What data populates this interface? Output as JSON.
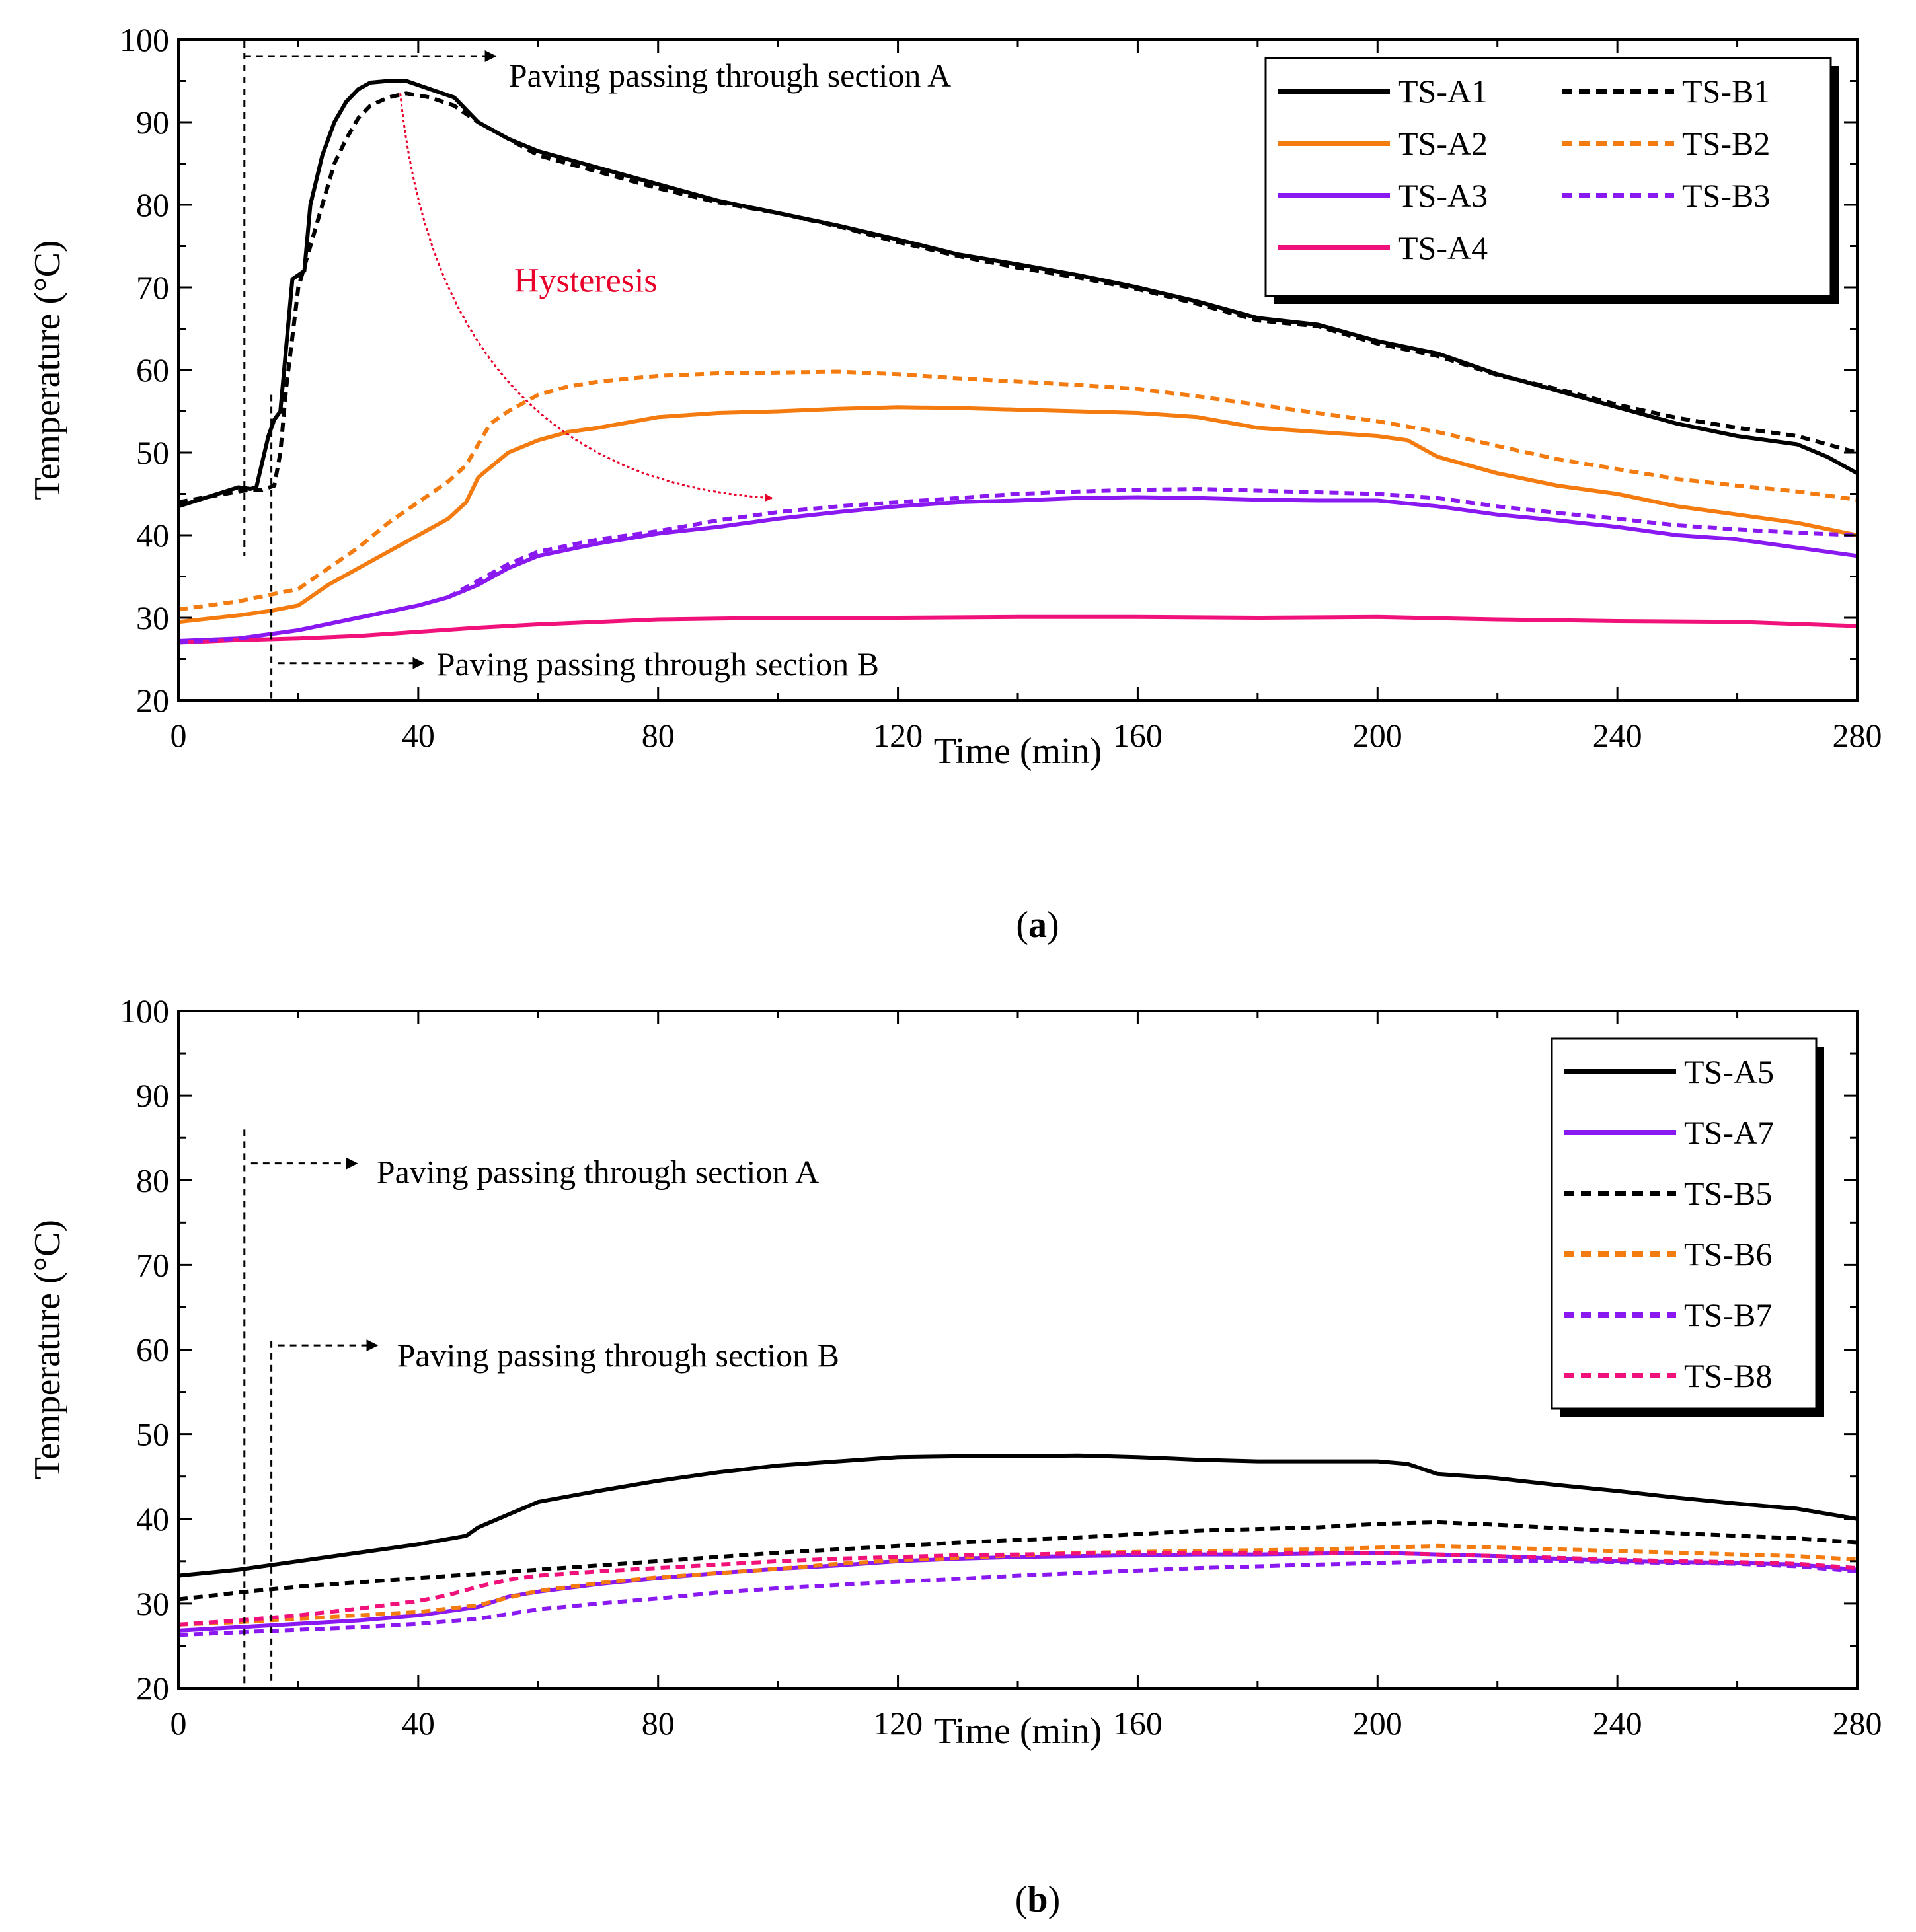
{
  "chart_data": [
    {
      "type": "line",
      "panel_label": "(a)",
      "caption_parts": [
        "(",
        "a",
        ")"
      ],
      "xlabel": "Time (min)",
      "ylabel": "Temperature (°C)",
      "xlim": [
        0,
        280
      ],
      "ylim": [
        20,
        100
      ],
      "xticks": [
        0,
        40,
        80,
        120,
        160,
        200,
        240,
        280
      ],
      "yticks": [
        20,
        30,
        40,
        50,
        60,
        70,
        80,
        90,
        100
      ],
      "legend_position": "top-right",
      "legend_columns": 2,
      "series": [
        {
          "name": "TS-A1",
          "color": "#000000",
          "style": "solid",
          "x": [
            0,
            10,
            12,
            13,
            15,
            16,
            17,
            18,
            19,
            20,
            21,
            22,
            24,
            26,
            28,
            30,
            32,
            35,
            38,
            42,
            46,
            50,
            55,
            60,
            70,
            80,
            90,
            100,
            110,
            120,
            130,
            140,
            150,
            160,
            170,
            180,
            190,
            200,
            210,
            220,
            230,
            240,
            250,
            260,
            270,
            275,
            280
          ],
          "y": [
            43.5,
            45.8,
            45.6,
            45.8,
            52,
            54,
            55,
            63,
            71,
            71.5,
            72,
            80,
            86,
            90,
            92.5,
            94,
            94.8,
            95,
            95,
            94,
            93,
            90,
            88,
            86.5,
            84.5,
            82.5,
            80.5,
            79,
            77.5,
            75.8,
            74,
            72.8,
            71.5,
            70,
            68.3,
            66.3,
            65.5,
            63.5,
            62,
            59.5,
            57.5,
            55.5,
            53.5,
            52,
            51,
            49.5,
            47.5
          ]
        },
        {
          "name": "TS-A2",
          "color": "#f47b0f",
          "style": "solid",
          "x": [
            0,
            10,
            15,
            20,
            25,
            30,
            35,
            40,
            45,
            48,
            50,
            55,
            60,
            65,
            70,
            80,
            90,
            100,
            110,
            120,
            130,
            140,
            150,
            160,
            170,
            180,
            190,
            200,
            205,
            210,
            220,
            230,
            240,
            250,
            260,
            270,
            280
          ],
          "y": [
            29.5,
            30.3,
            30.8,
            31.5,
            34,
            36,
            38,
            40,
            42,
            44,
            47,
            50,
            51.5,
            52.5,
            53,
            54.3,
            54.8,
            55,
            55.3,
            55.5,
            55.4,
            55.2,
            55,
            54.8,
            54.3,
            53,
            52.5,
            52,
            51.5,
            49.5,
            47.5,
            46,
            45,
            43.5,
            42.5,
            41.5,
            40
          ]
        },
        {
          "name": "TS-A3",
          "color": "#8a18f0",
          "style": "solid",
          "x": [
            0,
            10,
            20,
            30,
            40,
            45,
            50,
            55,
            60,
            70,
            80,
            90,
            100,
            110,
            120,
            130,
            140,
            150,
            160,
            170,
            180,
            190,
            200,
            210,
            220,
            230,
            240,
            250,
            260,
            270,
            280
          ],
          "y": [
            27.2,
            27.5,
            28.5,
            30,
            31.5,
            32.5,
            34,
            36,
            37.5,
            39,
            40.2,
            41,
            42,
            42.8,
            43.5,
            44,
            44.2,
            44.5,
            44.6,
            44.5,
            44.3,
            44.2,
            44.2,
            43.5,
            42.5,
            41.8,
            41,
            40,
            39.5,
            38.5,
            37.5
          ]
        },
        {
          "name": "TS-A4",
          "color": "#f0127a",
          "style": "solid",
          "x": [
            0,
            10,
            20,
            30,
            40,
            50,
            60,
            70,
            80,
            90,
            100,
            120,
            140,
            160,
            180,
            200,
            220,
            240,
            260,
            280
          ],
          "y": [
            27,
            27.3,
            27.5,
            27.8,
            28.3,
            28.8,
            29.2,
            29.5,
            29.8,
            29.9,
            30,
            30,
            30.1,
            30.1,
            30,
            30.1,
            29.8,
            29.6,
            29.5,
            29
          ]
        },
        {
          "name": "TS-B1",
          "color": "#000000",
          "style": "dashed",
          "x": [
            0,
            10,
            12,
            14,
            16,
            17,
            18,
            19,
            20,
            22,
            24,
            26,
            28,
            30,
            32,
            35,
            38,
            42,
            46,
            50,
            55,
            60,
            70,
            80,
            90,
            100,
            110,
            120,
            130,
            140,
            150,
            160,
            170,
            180,
            190,
            200,
            210,
            220,
            230,
            240,
            250,
            260,
            270,
            280
          ],
          "y": [
            44,
            45.3,
            45.5,
            45.5,
            46,
            50,
            58,
            64,
            70,
            75,
            80,
            85,
            88,
            90.5,
            92,
            93,
            93.5,
            93,
            92,
            90,
            88,
            86,
            84,
            82,
            80.3,
            79,
            77.4,
            75.5,
            73.8,
            72.4,
            71.2,
            69.8,
            68,
            66,
            65.3,
            63.2,
            61.7,
            59.4,
            57.7,
            55.8,
            54.2,
            53,
            52,
            50
          ]
        },
        {
          "name": "TS-B2",
          "color": "#f47b0f",
          "style": "dashed",
          "x": [
            0,
            10,
            20,
            25,
            30,
            35,
            40,
            45,
            48,
            50,
            52,
            55,
            60,
            65,
            70,
            80,
            90,
            100,
            110,
            120,
            130,
            140,
            150,
            160,
            170,
            180,
            190,
            200,
            210,
            220,
            230,
            240,
            250,
            260,
            270,
            280
          ],
          "y": [
            31,
            32,
            33.5,
            36,
            38.5,
            41.5,
            44,
            46.5,
            48.5,
            51,
            53.5,
            55,
            57,
            58,
            58.6,
            59.3,
            59.6,
            59.7,
            59.8,
            59.5,
            59,
            58.6,
            58.2,
            57.7,
            56.8,
            55.8,
            54.8,
            53.8,
            52.5,
            50.8,
            49.2,
            48,
            46.8,
            46,
            45.3,
            44.3
          ]
        },
        {
          "name": "TS-B3",
          "color": "#8a18f0",
          "style": "dashed",
          "x": [
            0,
            10,
            20,
            30,
            40,
            45,
            50,
            55,
            60,
            70,
            80,
            90,
            100,
            110,
            120,
            130,
            140,
            150,
            160,
            170,
            180,
            190,
            200,
            210,
            220,
            230,
            240,
            250,
            260,
            270,
            280
          ],
          "y": [
            27,
            27.5,
            28.5,
            30,
            31.5,
            32.5,
            34.5,
            36.5,
            38,
            39.5,
            40.5,
            41.8,
            42.8,
            43.5,
            44,
            44.5,
            45,
            45.3,
            45.5,
            45.6,
            45.4,
            45.2,
            45,
            44.5,
            43.5,
            42.7,
            42,
            41.2,
            40.7,
            40.3,
            40
          ]
        }
      ],
      "annotations": {
        "section_a": "Paving passing through section A",
        "section_b": "Paving passing through section B",
        "hysteresis": "Hysteresis"
      },
      "annotation_markers": {
        "section_a_time": 11,
        "section_b_time": 15.5,
        "section_a_arrow_temp": 98,
        "section_b_arrow_temp": 24.5,
        "hysteresis_from": [
          37,
          93.5
        ],
        "hysteresis_to": [
          99,
          44.5
        ]
      }
    },
    {
      "type": "line",
      "panel_label": "(b)",
      "caption_parts": [
        "(",
        "b",
        ")"
      ],
      "xlabel": "Time (min)",
      "ylabel": "Temperature (°C)",
      "xlim": [
        0,
        280
      ],
      "ylim": [
        20,
        100
      ],
      "xticks": [
        0,
        40,
        80,
        120,
        160,
        200,
        240,
        280
      ],
      "yticks": [
        20,
        30,
        40,
        50,
        60,
        70,
        80,
        90,
        100
      ],
      "legend_position": "top-right",
      "legend_columns": 1,
      "series": [
        {
          "name": "TS-A5",
          "color": "#000000",
          "style": "solid",
          "x": [
            0,
            10,
            20,
            30,
            40,
            48,
            50,
            55,
            60,
            70,
            80,
            90,
            100,
            110,
            120,
            130,
            140,
            150,
            160,
            170,
            180,
            190,
            200,
            205,
            210,
            220,
            230,
            240,
            250,
            260,
            270,
            280
          ],
          "y": [
            33.3,
            34,
            35,
            36,
            37,
            38,
            39,
            40.5,
            42,
            43.3,
            44.5,
            45.5,
            46.3,
            46.8,
            47.3,
            47.4,
            47.4,
            47.5,
            47.3,
            47,
            46.8,
            46.8,
            46.8,
            46.5,
            45.3,
            44.8,
            44,
            43.3,
            42.5,
            41.8,
            41.2,
            40
          ]
        },
        {
          "name": "TS-A7",
          "color": "#8a18f0",
          "style": "solid",
          "x": [
            0,
            10,
            20,
            30,
            40,
            50,
            55,
            60,
            70,
            80,
            90,
            100,
            110,
            120,
            130,
            140,
            150,
            160,
            170,
            180,
            190,
            200,
            210,
            220,
            230,
            240,
            250,
            260,
            270,
            280
          ],
          "y": [
            26.8,
            27.2,
            27.6,
            28,
            28.6,
            29.6,
            30.8,
            31.4,
            32.3,
            33,
            33.6,
            34.1,
            34.5,
            35,
            35.3,
            35.5,
            35.6,
            35.7,
            35.8,
            35.8,
            35.9,
            36,
            35.8,
            35.6,
            35.3,
            35,
            34.9,
            34.8,
            34.6,
            34
          ]
        },
        {
          "name": "TS-B5",
          "color": "#000000",
          "style": "dashed",
          "x": [
            0,
            10,
            20,
            30,
            40,
            50,
            60,
            70,
            80,
            90,
            100,
            110,
            120,
            130,
            140,
            150,
            160,
            170,
            180,
            190,
            200,
            210,
            220,
            230,
            240,
            250,
            260,
            270,
            280
          ],
          "y": [
            30.5,
            31.3,
            32,
            32.5,
            33,
            33.5,
            34,
            34.5,
            35,
            35.5,
            36,
            36.4,
            36.8,
            37.2,
            37.5,
            37.8,
            38.2,
            38.6,
            38.8,
            39,
            39.4,
            39.6,
            39.3,
            38.9,
            38.6,
            38.3,
            38,
            37.7,
            37.2
          ]
        },
        {
          "name": "TS-B6",
          "color": "#f47b0f",
          "style": "dashed",
          "x": [
            0,
            10,
            20,
            30,
            40,
            50,
            55,
            60,
            70,
            80,
            90,
            100,
            110,
            120,
            130,
            140,
            150,
            160,
            170,
            180,
            190,
            200,
            210,
            220,
            230,
            240,
            250,
            260,
            270,
            280
          ],
          "y": [
            27.5,
            27.8,
            28.2,
            28.6,
            29,
            29.8,
            30.7,
            31.5,
            32.4,
            33.1,
            33.6,
            34.1,
            34.7,
            35.1,
            35.4,
            35.7,
            36,
            36.1,
            36.2,
            36.3,
            36.4,
            36.6,
            36.8,
            36.6,
            36.4,
            36.2,
            36,
            35.8,
            35.6,
            35.2
          ]
        },
        {
          "name": "TS-B7",
          "color": "#8a18f0",
          "style": "dashed",
          "x": [
            0,
            10,
            20,
            30,
            40,
            50,
            60,
            70,
            80,
            90,
            100,
            110,
            120,
            130,
            140,
            150,
            160,
            170,
            180,
            190,
            200,
            210,
            220,
            230,
            240,
            250,
            260,
            270,
            280
          ],
          "y": [
            26.3,
            26.6,
            26.9,
            27.2,
            27.6,
            28.2,
            29.3,
            30,
            30.6,
            31.3,
            31.8,
            32.2,
            32.6,
            32.9,
            33.3,
            33.6,
            33.9,
            34.2,
            34.4,
            34.6,
            34.8,
            35,
            35,
            35,
            34.9,
            34.8,
            34.7,
            34.4,
            33.8
          ]
        },
        {
          "name": "TS-B8",
          "color": "#f0127a",
          "style": "dashed",
          "x": [
            0,
            10,
            20,
            30,
            40,
            45,
            50,
            55,
            60,
            70,
            80,
            90,
            100,
            110,
            120,
            130,
            140,
            150,
            160,
            170,
            180,
            190,
            200,
            210,
            220,
            230,
            240,
            250,
            260,
            270,
            280
          ],
          "y": [
            27.5,
            28,
            28.6,
            29.4,
            30.3,
            31,
            32,
            32.8,
            33.3,
            33.8,
            34.2,
            34.6,
            35,
            35.3,
            35.5,
            35.7,
            35.8,
            35.9,
            36,
            36,
            36,
            36,
            36,
            35.8,
            35.6,
            35.4,
            35.2,
            35,
            34.9,
            34.7,
            34.2
          ]
        }
      ],
      "annotations": {
        "section_a": "Paving passing through section A",
        "section_b": "Paving passing through section B"
      },
      "annotation_markers": {
        "section_a_time": 11,
        "section_b_time": 15.5,
        "section_a_arrow_temp": 82,
        "section_b_arrow_temp": 60.5
      }
    }
  ]
}
